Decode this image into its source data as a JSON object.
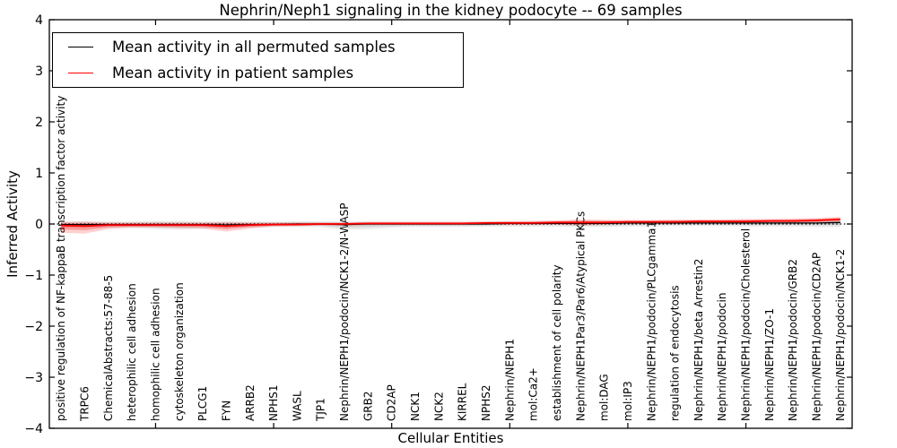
{
  "chart_data": {
    "type": "line",
    "title": "Nephrin/Neph1 signaling in the kidney podocyte -- 69 samples",
    "xlabel": "Cellular Entities",
    "ylabel": "Inferred Activity",
    "ylim": [
      -4,
      4
    ],
    "yticks": [
      4,
      3,
      2,
      1,
      0,
      -1,
      -2,
      -3,
      -4
    ],
    "ytick_labels": [
      "4",
      "3",
      "2",
      "1",
      "0",
      "−1",
      "−2",
      "−3",
      "−4"
    ],
    "xtick_index_marks": [
      4,
      9,
      14,
      19,
      24,
      29
    ],
    "grid": false,
    "legend_position": "upper left",
    "zero_line": {
      "value": 0,
      "style": "dotted",
      "color": "#000000"
    },
    "categories": [
      "positive regulation of NF-kappaB transcription factor activity",
      "TRPC6",
      "ChemicalAbstracts:57-88-5",
      "heterophilic cell adhesion",
      "homophilic cell adhesion",
      "cytoskeleton organization",
      "PLCG1",
      "FYN",
      "ARRB2",
      "NPHS1",
      "WASL",
      "TJP1",
      "Nephrin/NEPH1/podocin/NCK1-2/N-WASP",
      "GRB2",
      "CD2AP",
      "NCK1",
      "NCK2",
      "KIRREL",
      "NPHS2",
      "Nephrin/NEPH1",
      "mol:Ca2+",
      "establishment of cell polarity",
      "Nephrin/NEPH1Par3/Par6/Atypical PKCs",
      "mol:DAG",
      "mol:IP3",
      "Nephrin/NEPH1/podocin/PLCgamma1",
      "regulation of endocytosis",
      "Nephrin/NEPH1/beta Arrestin2",
      "Nephrin/NEPH1/podocin",
      "Nephrin/NEPH1/podocin/Cholesterol",
      "Nephrin/NEPH1/ZO-1",
      "Nephrin/NEPH1/podocin/GRB2",
      "Nephrin/NEPH1/podocin/CD2AP",
      "Nephrin/NEPH1/podocin/NCK1-2"
    ],
    "series": [
      {
        "name": "Mean activity in all permuted samples",
        "color": "#000000",
        "line_width": 1.3,
        "band_color": "#888888",
        "band_opacity": 0.18,
        "values": [
          -0.01,
          -0.01,
          -0.01,
          -0.01,
          -0.01,
          -0.01,
          -0.01,
          -0.02,
          -0.01,
          -0.01,
          0,
          0,
          -0.01,
          0,
          0,
          0,
          0,
          0,
          0,
          0.01,
          0.01,
          0.01,
          0.01,
          0.01,
          0.02,
          0.02,
          0.02,
          0.02,
          0.02,
          0.02,
          0.02,
          0.02,
          0.02,
          0.03
        ],
        "upper": [
          0.05,
          0.05,
          0.05,
          0.05,
          0.06,
          0.06,
          0.05,
          0.05,
          0.05,
          0.05,
          0.05,
          0.05,
          0.05,
          0.05,
          0.05,
          0.05,
          0.05,
          0.05,
          0.05,
          0.05,
          0.06,
          0.06,
          0.07,
          0.07,
          0.06,
          0.06,
          0.06,
          0.06,
          0.06,
          0.07,
          0.07,
          0.07,
          0.07,
          0.08
        ],
        "lower": [
          -0.08,
          -0.08,
          -0.07,
          -0.08,
          -0.1,
          -0.11,
          -0.09,
          -0.08,
          -0.07,
          -0.06,
          -0.06,
          -0.06,
          -0.11,
          -0.1,
          -0.07,
          -0.06,
          -0.06,
          -0.06,
          -0.05,
          -0.05,
          -0.05,
          -0.05,
          -0.06,
          -0.06,
          -0.05,
          -0.05,
          -0.04,
          -0.04,
          -0.04,
          -0.05,
          -0.05,
          -0.05,
          -0.06,
          -0.06
        ]
      },
      {
        "name": "Mean activity in patient samples",
        "color": "#ff0000",
        "line_width": 1.8,
        "band_color": "#ff0000",
        "band_opacity": 0.18,
        "values": [
          -0.03,
          -0.04,
          -0.02,
          -0.02,
          -0.02,
          -0.02,
          -0.02,
          -0.04,
          -0.02,
          -0.01,
          -0.01,
          0,
          0,
          0.01,
          0.01,
          0.01,
          0.01,
          0.01,
          0.02,
          0.02,
          0.02,
          0.03,
          0.03,
          0.03,
          0.04,
          0.04,
          0.04,
          0.05,
          0.05,
          0.05,
          0.06,
          0.06,
          0.07,
          0.09
        ],
        "upper": [
          0.04,
          0.05,
          0.03,
          0.03,
          0.03,
          0.03,
          0.03,
          0.04,
          0.03,
          0.03,
          0.03,
          0.03,
          0.03,
          0.04,
          0.04,
          0.04,
          0.04,
          0.04,
          0.05,
          0.06,
          0.06,
          0.07,
          0.09,
          0.08,
          0.08,
          0.08,
          0.09,
          0.09,
          0.09,
          0.1,
          0.1,
          0.11,
          0.12,
          0.14
        ],
        "lower": [
          -0.17,
          -0.19,
          -0.1,
          -0.07,
          -0.07,
          -0.08,
          -0.09,
          -0.15,
          -0.09,
          -0.05,
          -0.04,
          -0.03,
          -0.03,
          -0.02,
          -0.02,
          -0.02,
          -0.02,
          -0.02,
          -0.01,
          -0.02,
          -0.02,
          -0.01,
          -0.03,
          -0.01,
          0,
          0,
          0,
          0.01,
          0.01,
          0.01,
          0.02,
          0.02,
          0.03,
          0.04
        ]
      }
    ],
    "legend": [
      {
        "label": "Mean activity in all permuted samples",
        "color": "#000000"
      },
      {
        "label": "Mean activity in patient samples",
        "color": "#ff0000"
      }
    ]
  }
}
